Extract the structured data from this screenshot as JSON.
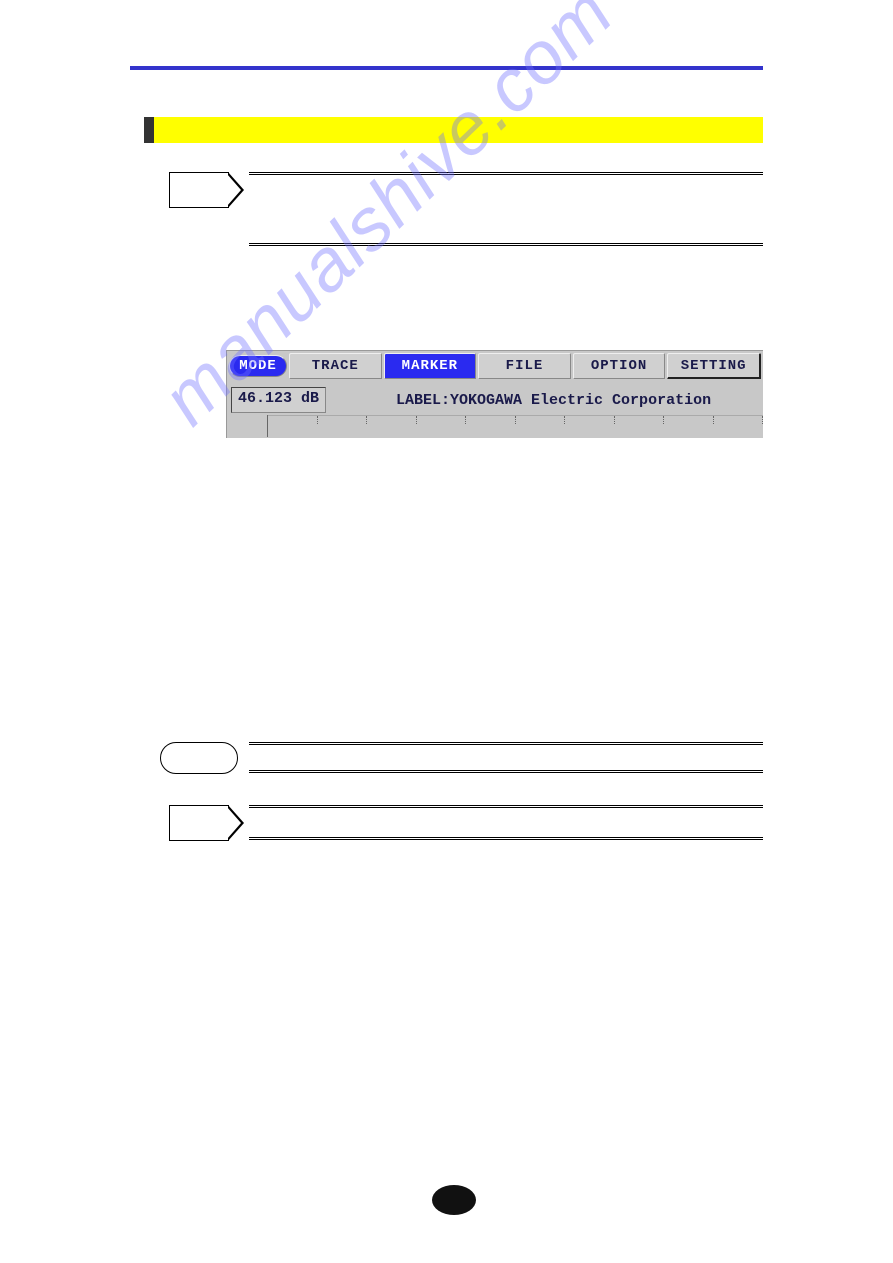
{
  "screenshot": {
    "tabs": {
      "mode": "MODE",
      "trace": "TRACE",
      "marker": "MARKER",
      "file": "FILE",
      "option": "OPTION",
      "setting": "SETTING"
    },
    "db_value": "46.123 dB",
    "label_prefix": "LABEL:",
    "label_text": "YOKOGAWA Electric Corporation"
  },
  "watermark": "manualshive.com",
  "colors": {
    "blue_rule": "#3333cc",
    "yellow_bar": "#ffff00",
    "tab_selected_bg": "#2a2af0",
    "tab_bg": "#d0d0d0",
    "screenshot_bg": "#c8c8c8",
    "text": "#1a1a4a"
  }
}
